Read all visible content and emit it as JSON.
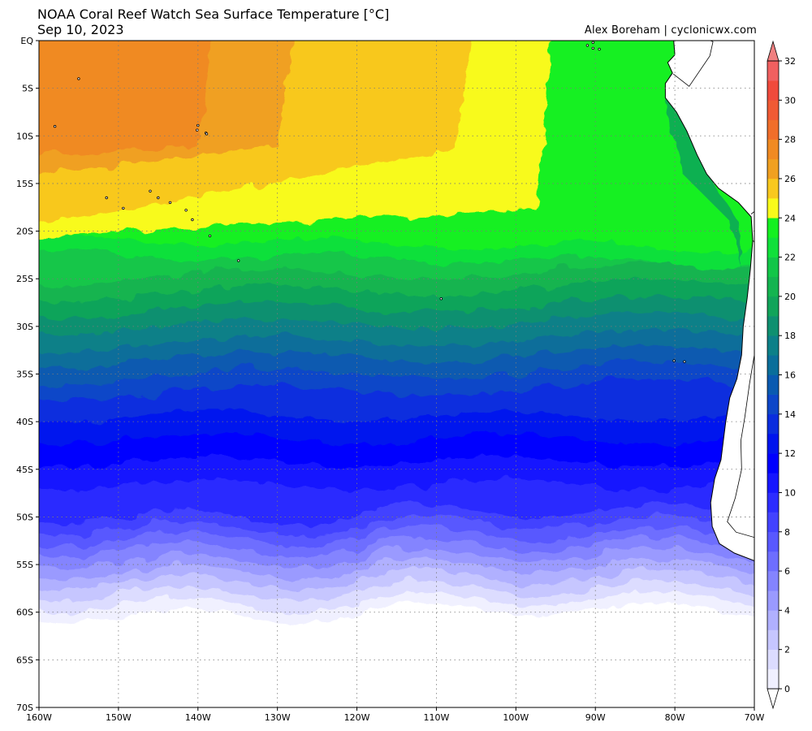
{
  "header": {
    "title": "NOAA Coral Reef Watch Sea Surface Temperature [°C]",
    "date": "Sep 10, 2023",
    "credit": "Alex Boreham | cyclonicwx.com"
  },
  "map": {
    "lon_range": [
      -160,
      -70
    ],
    "lat_range": [
      -70,
      0
    ],
    "lon_ticks": [
      {
        "value": -160,
        "label": "160W"
      },
      {
        "value": -150,
        "label": "150W"
      },
      {
        "value": -140,
        "label": "140W"
      },
      {
        "value": -130,
        "label": "130W"
      },
      {
        "value": -120,
        "label": "120W"
      },
      {
        "value": -110,
        "label": "110W"
      },
      {
        "value": -100,
        "label": "100W"
      },
      {
        "value": -90,
        "label": "90W"
      },
      {
        "value": -80,
        "label": "80W"
      },
      {
        "value": -70,
        "label": "70W"
      }
    ],
    "lat_ticks": [
      {
        "value": 0,
        "label": "EQ"
      },
      {
        "value": -5,
        "label": "5S"
      },
      {
        "value": -10,
        "label": "10S"
      },
      {
        "value": -15,
        "label": "15S"
      },
      {
        "value": -20,
        "label": "20S"
      },
      {
        "value": -25,
        "label": "25S"
      },
      {
        "value": -30,
        "label": "30S"
      },
      {
        "value": -35,
        "label": "35S"
      },
      {
        "value": -40,
        "label": "40S"
      },
      {
        "value": -45,
        "label": "45S"
      },
      {
        "value": -50,
        "label": "50S"
      },
      {
        "value": -55,
        "label": "55S"
      },
      {
        "value": -60,
        "label": "60S"
      },
      {
        "value": -65,
        "label": "65S"
      },
      {
        "value": -70,
        "label": "70S"
      }
    ],
    "gridlines": true,
    "land_color": "#ffffff",
    "coastline_color": "#000000"
  },
  "colorbar": {
    "levels": [
      0,
      1,
      2,
      3,
      4,
      5,
      6,
      7,
      8,
      9,
      10,
      11,
      12,
      13,
      14,
      15,
      16,
      17,
      18,
      19,
      20,
      21,
      22,
      23,
      24,
      25,
      26,
      27,
      28,
      29,
      30,
      31,
      32
    ],
    "labels": [
      "0",
      "2",
      "4",
      "6",
      "8",
      "10",
      "12",
      "14",
      "16",
      "18",
      "20",
      "22",
      "24",
      "26",
      "28",
      "30",
      "32"
    ],
    "colors": [
      "#f0f0ff",
      "#dcdcff",
      "#c6c6ff",
      "#b0b0ff",
      "#9a9aff",
      "#8484ff",
      "#6e6eff",
      "#5858ff",
      "#4242ff",
      "#2c2cff",
      "#1616ff",
      "#0000ff",
      "#0014ee",
      "#0a2dde",
      "#0d46c8",
      "#0a5ab0",
      "#0a6e9a",
      "#0c8088",
      "#0e9070",
      "#11a45a",
      "#14b450",
      "#12c648",
      "#10e03a",
      "#14f020",
      "#f8fa1a",
      "#f8c81e",
      "#f0a020",
      "#f08a22",
      "#f06e2a",
      "#f05a34",
      "#f04a3c",
      "#f06060"
    ],
    "under_color": "#ffffff",
    "over_color": "#f08080"
  },
  "chart_data": {
    "type": "heatmap",
    "variable": "Sea Surface Temperature",
    "units": "°C",
    "x_axis": "longitude",
    "y_axis": "latitude",
    "isotherms_approx": [
      {
        "temp_c": 28,
        "description": "northwest warm pool north of ~15S, west of ~140W"
      },
      {
        "temp_c": 26,
        "description": "yellow band from ~19S at 160W to ~8S at 110W"
      },
      {
        "temp_c": 20,
        "description": "near 27S across basin"
      },
      {
        "temp_c": 14,
        "description": "near 38-40S"
      },
      {
        "temp_c": 8,
        "description": "near 50-53S"
      },
      {
        "temp_c": 2,
        "description": "near 60-62S"
      }
    ]
  }
}
